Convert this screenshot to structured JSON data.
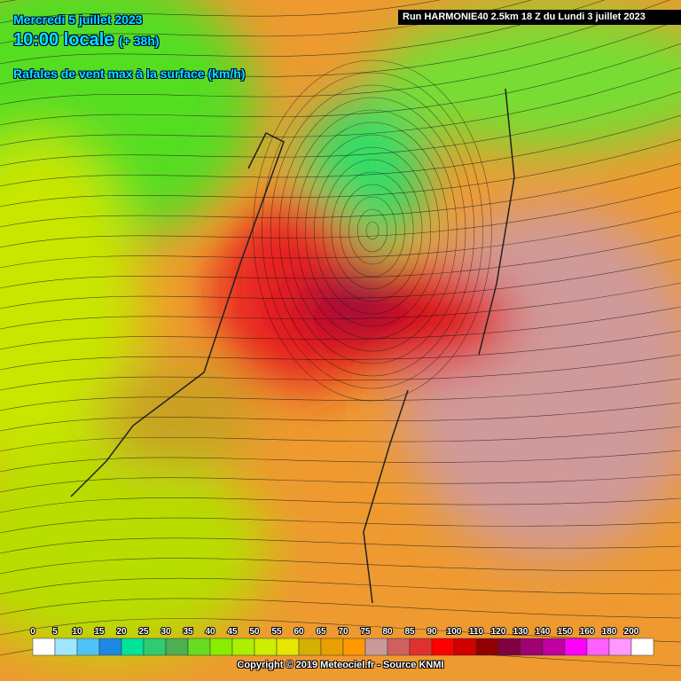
{
  "header": {
    "date": "Mercredi 5 juillet 2023",
    "time": "10:00 locale",
    "offset": "(+ 38h)",
    "field": "Rafales de vent max à la surface (km/h)",
    "run": "Run HARMONIE40 2.5km 18 Z du Lundi 3 juillet 2023"
  },
  "legend": {
    "labels": [
      0,
      5,
      10,
      15,
      20,
      25,
      30,
      35,
      40,
      45,
      50,
      55,
      60,
      65,
      70,
      75,
      80,
      85,
      90,
      100,
      110,
      120,
      130,
      140,
      150,
      160,
      180,
      200
    ],
    "colors": [
      "#ffffff",
      "#9ee7ff",
      "#4fc3f7",
      "#1e88e5",
      "#00e39a",
      "#2ecc71",
      "#4caf50",
      "#66dd22",
      "#88ee00",
      "#aaf000",
      "#ccee00",
      "#e6e600",
      "#d4b000",
      "#e8a000",
      "#ff9900",
      "#c89a9a",
      "#d06060",
      "#e03030",
      "#ff0000",
      "#d00000",
      "#900000",
      "#800040",
      "#a00070",
      "#c000a0",
      "#ff00ff",
      "#ff60ff",
      "#ff99ff",
      "#ffffff"
    ]
  },
  "footer": {
    "copyright": "Copyright © 2019 Meteociel.fr - Source KNMI"
  }
}
